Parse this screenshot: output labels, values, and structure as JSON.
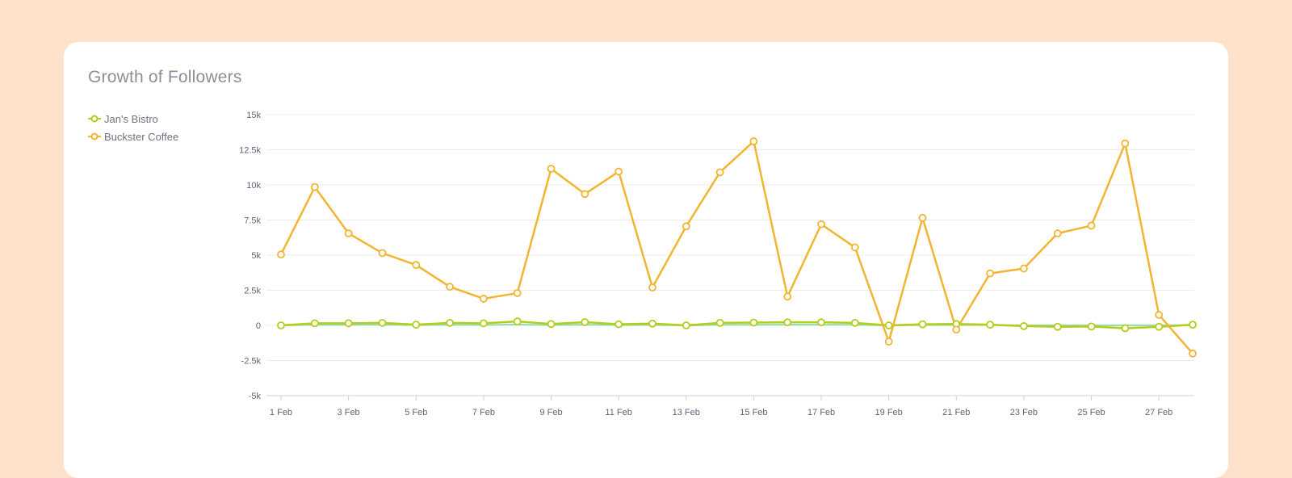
{
  "chart_data": {
    "type": "line",
    "title": "Growth of Followers",
    "x": [
      "1 Feb",
      "2 Feb",
      "3 Feb",
      "4 Feb",
      "5 Feb",
      "6 Feb",
      "7 Feb",
      "8 Feb",
      "9 Feb",
      "10 Feb",
      "11 Feb",
      "12 Feb",
      "13 Feb",
      "14 Feb",
      "15 Feb",
      "16 Feb",
      "17 Feb",
      "18 Feb",
      "19 Feb",
      "20 Feb",
      "21 Feb",
      "22 Feb",
      "23 Feb",
      "24 Feb",
      "25 Feb",
      "26 Feb",
      "27 Feb",
      "28 Feb"
    ],
    "x_tick_labels": [
      "1 Feb",
      "3 Feb",
      "5 Feb",
      "7 Feb",
      "9 Feb",
      "11 Feb",
      "13 Feb",
      "15 Feb",
      "17 Feb",
      "19 Feb",
      "21 Feb",
      "23 Feb",
      "25 Feb",
      "27 Feb"
    ],
    "y_tick_labels": [
      "15k",
      "12.5k",
      "10k",
      "7.5k",
      "5k",
      "2.5k",
      "0",
      "-2.5k",
      "-5k"
    ],
    "ylim": [
      -5000,
      15000
    ],
    "y_ticks": [
      15000,
      12500,
      10000,
      7500,
      5000,
      2500,
      0,
      -2500,
      -5000
    ],
    "grid": true,
    "legend_position": "top-left",
    "series": [
      {
        "name": "Jan's Bistro",
        "color": "#b5cc18",
        "values": [
          0,
          150,
          150,
          180,
          50,
          180,
          150,
          280,
          100,
          230,
          80,
          130,
          0,
          180,
          200,
          220,
          220,
          180,
          0,
          80,
          100,
          50,
          -50,
          -100,
          -80,
          -200,
          -100,
          50
        ]
      },
      {
        "name": "Buckster Coffee",
        "color": "#f2b531",
        "values": [
          5050,
          9850,
          6550,
          5150,
          4300,
          2750,
          1900,
          2300,
          11150,
          9350,
          10950,
          2700,
          7050,
          10900,
          13100,
          2050,
          7200,
          5550,
          -1150,
          7650,
          -300,
          3700,
          4050,
          6550,
          7100,
          12950,
          750,
          -2000
        ]
      },
      {
        "name": "",
        "color": "#8fdcb0",
        "values": [
          0,
          40,
          40,
          50,
          20,
          40,
          30,
          60,
          20,
          50,
          20,
          30,
          0,
          40,
          40,
          50,
          50,
          40,
          0,
          20,
          30,
          20,
          10,
          10,
          10,
          10,
          10,
          20
        ]
      }
    ]
  }
}
